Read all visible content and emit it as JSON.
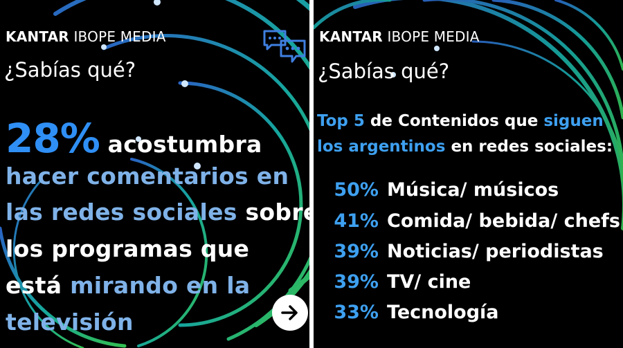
{
  "left_panel": {
    "brand_bold": "KANTAR",
    "brand_light": "IBOPE MEDIA",
    "question": "¿Sabías qué?",
    "stat_percent": "28%",
    "stat_text": "acostumbra",
    "line2": "hacer comentarios en",
    "line3_hl": "las redes sociales",
    "line3_rest": " sobre",
    "line4": "los programas que",
    "line5_plain": "está ",
    "line5_hl": "mirando en la",
    "line6": "televisión"
  },
  "right_panel": {
    "brand_bold": "KANTAR",
    "brand_light": "IBOPE MEDIA",
    "question": "¿Sabías qué?",
    "heading_hl1": "Top 5",
    "heading_plain1": " de Contenidos que ",
    "heading_hl2": "siguen",
    "heading_hl3": "los argentinos",
    "heading_plain2": " en redes sociales:",
    "items": [
      {
        "percent": "50%",
        "label": "Música/ músicos"
      },
      {
        "percent": "41%",
        "label": "Comida/ bebida/ chefs"
      },
      {
        "percent": "39%",
        "label": "Noticias/ periodistas"
      },
      {
        "percent": "39%",
        "label": "TV/ cine"
      },
      {
        "percent": "33%",
        "label": "Tecnología"
      }
    ]
  },
  "colors": {
    "background": "#000000",
    "accent_blue": "#2f8ff5",
    "highlight_blue": "#7fb2e8",
    "ring_green": "#2ecc71",
    "ring_teal": "#1fb5b5"
  },
  "icons": [
    "chat-bubbles-icon",
    "arrow-right-icon"
  ]
}
